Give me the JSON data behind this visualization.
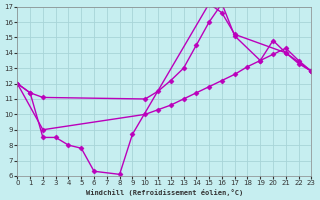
{
  "title": "",
  "xlabel": "Windchill (Refroidissement éolien,°C)",
  "ylabel": "",
  "xlim": [
    0,
    23
  ],
  "ylim": [
    6,
    17
  ],
  "xticks": [
    0,
    1,
    2,
    3,
    4,
    5,
    6,
    7,
    8,
    9,
    10,
    11,
    12,
    13,
    14,
    15,
    16,
    17,
    18,
    19,
    20,
    21,
    22,
    23
  ],
  "yticks": [
    6,
    7,
    8,
    9,
    10,
    11,
    12,
    13,
    14,
    15,
    16,
    17
  ],
  "background_color": "#c6eef0",
  "grid_color": "#a8d4d8",
  "line_color": "#bb00bb",
  "line_width": 1.0,
  "marker": "D",
  "marker_size": 2.5,
  "lines": [
    {
      "x": [
        0,
        1,
        2,
        3,
        4,
        5,
        6,
        8,
        9,
        15,
        16,
        17,
        21,
        23
      ],
      "y": [
        12,
        11.4,
        8.5,
        8.5,
        8.0,
        7.8,
        6.3,
        6.1,
        8.7,
        17.2,
        16.6,
        15.2,
        14.0,
        12.8
      ]
    },
    {
      "x": [
        0,
        1,
        2,
        10,
        11,
        12,
        13,
        14,
        15,
        16,
        17,
        19,
        20,
        21,
        22,
        23
      ],
      "y": [
        12,
        11.4,
        11.1,
        11.0,
        11.5,
        12.2,
        13.0,
        14.5,
        16.0,
        17.2,
        15.1,
        13.5,
        14.8,
        14.0,
        13.3,
        12.8
      ]
    },
    {
      "x": [
        0,
        2,
        10,
        11,
        12,
        13,
        14,
        15,
        16,
        17,
        18,
        19,
        20,
        21,
        22,
        23
      ],
      "y": [
        12,
        9.0,
        10.0,
        10.3,
        10.6,
        11.0,
        11.4,
        11.8,
        12.2,
        12.6,
        13.1,
        13.5,
        13.9,
        14.3,
        13.5,
        12.8
      ]
    }
  ]
}
